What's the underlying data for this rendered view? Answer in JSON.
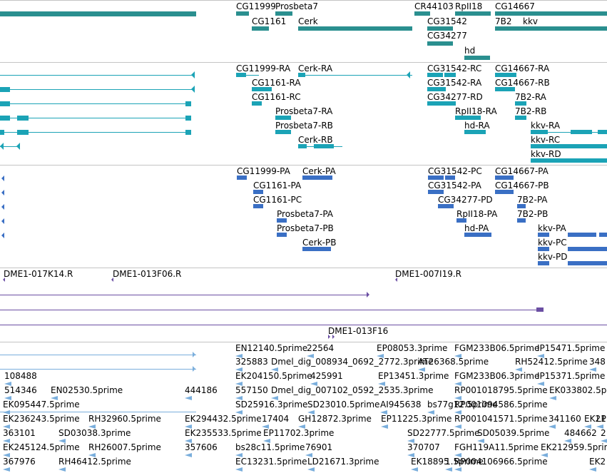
{
  "tracks": {
    "genes": {
      "color": "#2a8f8f",
      "labels": [
        "CG11999",
        "Prosbeta7",
        "CR44103",
        "RpII18",
        "CG14667",
        "CG1161",
        "Cerk",
        "CG31542",
        "7B2",
        "kkv",
        "CG34277",
        "hd"
      ]
    },
    "transcripts": {
      "color": "#1ba3b6",
      "labels": [
        "CG11999-RA",
        "Cerk-RA",
        "CG31542-RC",
        "CG14667-RA",
        "CG1161-RA",
        "CG31542-RA",
        "CG14667-RB",
        "CG1161-RC",
        "CG34277-RD",
        "7B2-RA",
        "Prosbeta7-RA",
        "RpII18-RA",
        "7B2-RB",
        "Prosbeta7-RB",
        "hd-RA",
        "kkv-RA",
        "Cerk-RB",
        "kkv-RC",
        "kkv-RD"
      ]
    },
    "cds": {
      "color": "#3a6fc4",
      "labels": [
        "CG11999-PA",
        "Cerk-PA",
        "CG31542-PC",
        "CG14667-PA",
        "CG1161-PA",
        "CG31542-PA",
        "CG14667-PB",
        "CG1161-PC",
        "CG34277-PD",
        "7B2-PA",
        "Prosbeta7-PA",
        "RpII18-PA",
        "7B2-PB",
        "Prosbeta7-PB",
        "hd-PA",
        "kkv-PA",
        "Cerk-PB",
        "kkv-PC",
        "kkv-PD"
      ]
    },
    "bacs": {
      "color": "#6b4fa3",
      "labels": [
        "DME1-017K14.R",
        "DME1-013F06.R",
        "DME1-007I19.R",
        "DME1-013F16"
      ]
    },
    "ests": {
      "color": "#7aaedc",
      "labels": [
        "EN12140.5prime",
        "22564",
        "EP08053.3prime",
        "FGM233B06.5prime",
        "IP15471.5prime",
        "325883",
        "Dmel_dig_008934_0692_2772.3prime",
        "AT26368.5prime",
        "RH52412.5prime",
        "348",
        "108488",
        "EK204150.5prime",
        "425991",
        "EP13451.3prime",
        "FGM233B06.3prime",
        "IP15371.5prime",
        "514346",
        "EN02530.5prime",
        "444186",
        "557150",
        "Dmel_dig_007102_0592_2535.3prime",
        "RP001018795.5prime",
        "EK033802.5p",
        "EK095447.5prime",
        "SD25916.3prime",
        "SD23010.5prime",
        "AI945638",
        "bs77g12.5prime",
        "RP001094586.5prime",
        "EK236243.5prime",
        "RH32960.5prime",
        "EK294432.5prime",
        "17404",
        "GH12872.3prime",
        "EP11225.3prime",
        "RP001041571.5prime",
        "341160",
        "EK21",
        "LP",
        "363101",
        "SD03038.3prime",
        "EK235533.5prime",
        "EP11702.3prime",
        "SD22777.5prime",
        "SD05039.5prime",
        "484662",
        "2",
        "EK245124.5prime",
        "RH26007.5prime",
        "357606",
        "bs28c11.5prime",
        "76901",
        "370707",
        "FGH119A11.5prime",
        "EK212959.5prime",
        "367976",
        "RH46412.5prime",
        "EC13231.5prime",
        "LD21671.3prime",
        "EK18895",
        "1.5prime",
        "RP004106966.5prime",
        "EK2"
      ]
    }
  }
}
